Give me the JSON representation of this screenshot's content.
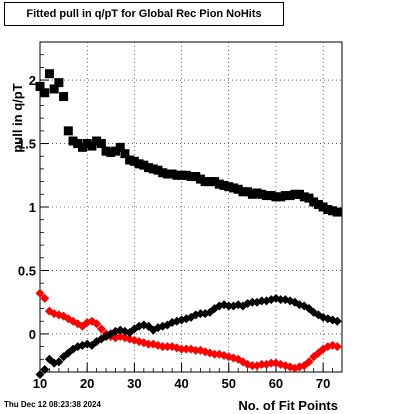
{
  "chart_data": {
    "type": "scatter",
    "title": "Fitted pull in q/pT for Global Rec Pion NoHits",
    "xlabel": "No. of Fit Points",
    "ylabel": "pull in q/pT",
    "xlim": [
      10,
      74
    ],
    "ylim": [
      -0.3,
      2.3
    ],
    "xticks": [
      10,
      20,
      30,
      40,
      50,
      60,
      70
    ],
    "yticks": [
      0,
      0.5,
      1,
      1.5,
      2
    ],
    "ytick_labels": [
      "0",
      "0.5",
      "1",
      "1.5",
      "2"
    ],
    "grid": true,
    "series": [
      {
        "color": "#000000",
        "marker": "square",
        "x": [
          10,
          11,
          12,
          13,
          14,
          15,
          16,
          17,
          18,
          19,
          20,
          21,
          22,
          23,
          24,
          25,
          26,
          27,
          28,
          29,
          30,
          31,
          32,
          33,
          34,
          35,
          36,
          37,
          38,
          39,
          40,
          41,
          42,
          43,
          44,
          45,
          46,
          47,
          48,
          49,
          50,
          51,
          52,
          53,
          54,
          55,
          56,
          57,
          58,
          59,
          60,
          61,
          62,
          63,
          64,
          65,
          66,
          67,
          68,
          69,
          70,
          71,
          72,
          73
        ],
        "y": [
          1.95,
          1.9,
          2.05,
          1.93,
          1.98,
          1.87,
          1.6,
          1.52,
          1.5,
          1.47,
          1.5,
          1.48,
          1.52,
          1.5,
          1.44,
          1.43,
          1.44,
          1.47,
          1.42,
          1.37,
          1.36,
          1.34,
          1.33,
          1.31,
          1.3,
          1.29,
          1.27,
          1.26,
          1.26,
          1.25,
          1.25,
          1.25,
          1.24,
          1.24,
          1.22,
          1.2,
          1.2,
          1.2,
          1.18,
          1.17,
          1.16,
          1.15,
          1.14,
          1.12,
          1.12,
          1.1,
          1.11,
          1.1,
          1.09,
          1.09,
          1.08,
          1.08,
          1.09,
          1.09,
          1.1,
          1.1,
          1.08,
          1.07,
          1.04,
          1.02,
          1.0,
          0.98,
          0.97,
          0.96
        ]
      },
      {
        "color": "#ff0000",
        "marker": "diamond",
        "x": [
          10,
          11,
          12,
          13,
          14,
          15,
          16,
          17,
          18,
          19,
          20,
          21,
          22,
          23,
          24,
          25,
          26,
          27,
          28,
          29,
          30,
          31,
          32,
          33,
          34,
          35,
          36,
          37,
          38,
          39,
          40,
          41,
          42,
          43,
          44,
          45,
          46,
          47,
          48,
          49,
          50,
          51,
          52,
          53,
          54,
          55,
          56,
          57,
          58,
          59,
          60,
          61,
          62,
          63,
          64,
          65,
          66,
          67,
          68,
          69,
          70,
          71,
          72,
          73
        ],
        "y": [
          0.32,
          0.28,
          0.18,
          0.16,
          0.15,
          0.14,
          0.12,
          0.1,
          0.08,
          0.06,
          0.09,
          0.1,
          0.08,
          0.04,
          0.0,
          -0.02,
          -0.03,
          -0.02,
          -0.03,
          -0.04,
          -0.05,
          -0.06,
          -0.07,
          -0.08,
          -0.08,
          -0.09,
          -0.1,
          -0.1,
          -0.1,
          -0.11,
          -0.12,
          -0.12,
          -0.12,
          -0.13,
          -0.13,
          -0.14,
          -0.15,
          -0.16,
          -0.16,
          -0.17,
          -0.18,
          -0.19,
          -0.2,
          -0.22,
          -0.24,
          -0.25,
          -0.25,
          -0.24,
          -0.24,
          -0.23,
          -0.23,
          -0.24,
          -0.25,
          -0.26,
          -0.27,
          -0.26,
          -0.25,
          -0.22,
          -0.18,
          -0.15,
          -0.12,
          -0.1,
          -0.09,
          -0.1
        ]
      },
      {
        "color": "#000000",
        "marker": "diamond",
        "x": [
          10,
          11,
          12,
          13,
          14,
          15,
          16,
          17,
          18,
          19,
          20,
          21,
          22,
          23,
          24,
          25,
          26,
          27,
          28,
          29,
          30,
          31,
          32,
          33,
          34,
          35,
          36,
          37,
          38,
          39,
          40,
          41,
          42,
          43,
          44,
          45,
          46,
          47,
          48,
          49,
          50,
          51,
          52,
          53,
          54,
          55,
          56,
          57,
          58,
          59,
          60,
          61,
          62,
          63,
          64,
          65,
          66,
          67,
          68,
          69,
          70,
          71,
          72,
          73
        ],
        "y": [
          -0.32,
          -0.28,
          -0.2,
          -0.23,
          -0.22,
          -0.18,
          -0.15,
          -0.12,
          -0.1,
          -0.09,
          -0.08,
          -0.09,
          -0.06,
          -0.04,
          -0.02,
          0.0,
          0.02,
          0.03,
          0.02,
          0.01,
          0.04,
          0.06,
          0.07,
          0.06,
          0.03,
          0.05,
          0.06,
          0.07,
          0.09,
          0.1,
          0.11,
          0.12,
          0.13,
          0.15,
          0.16,
          0.16,
          0.17,
          0.2,
          0.22,
          0.23,
          0.22,
          0.22,
          0.23,
          0.22,
          0.24,
          0.25,
          0.25,
          0.26,
          0.26,
          0.27,
          0.28,
          0.27,
          0.27,
          0.26,
          0.25,
          0.23,
          0.22,
          0.2,
          0.17,
          0.15,
          0.13,
          0.12,
          0.11,
          0.1
        ]
      }
    ]
  },
  "footer": {
    "timestamp": "Thu Dec 12 08:23:38 2024"
  }
}
